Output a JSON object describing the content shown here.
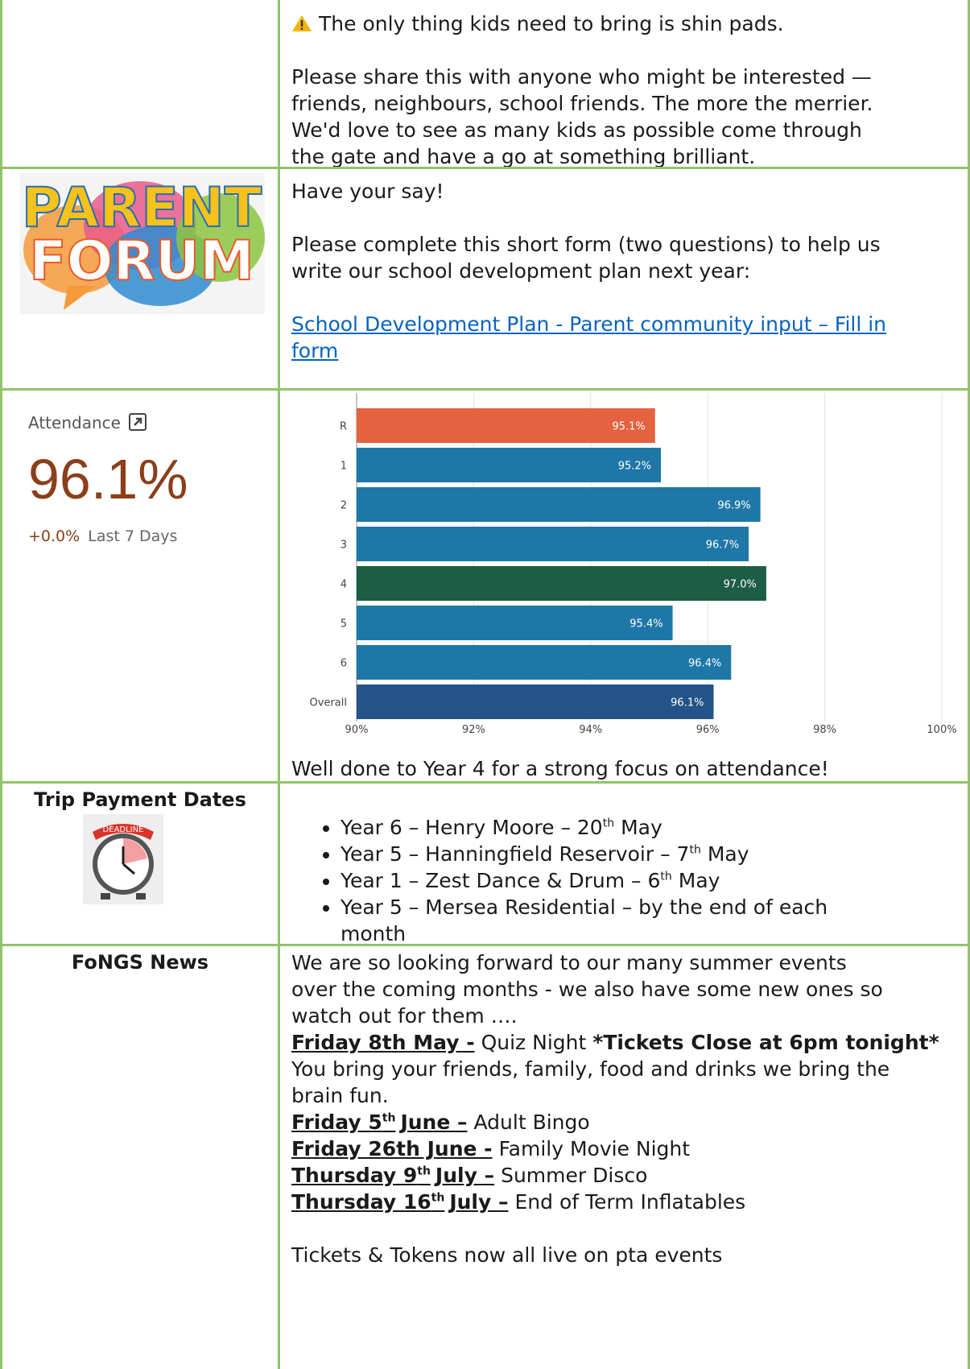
{
  "notice": {
    "warning": "The only thing kids need to bring is shin pads.",
    "paragraph": [
      "Please share this with anyone who might be interested —",
      "friends, neighbours, school friends. The more the merrier.",
      "We'd love to see as many kids as possible come through",
      "the gate and have a go at something brilliant."
    ]
  },
  "parent_forum": {
    "logo": [
      "PARENT",
      "FORUM"
    ],
    "heading": "Have your say!",
    "paragraph": [
      "Please complete this short form (two questions) to help us",
      "write our school development plan next year:"
    ],
    "link": [
      "School Development Plan - Parent community input – Fill in",
      "form"
    ]
  },
  "attendance": {
    "label": "Attendance",
    "value": "96.1%",
    "change": "+0.0%",
    "period": "Last 7 Days",
    "caption": "Well done to Year 4 for a strong focus on attendance!"
  },
  "chart_data": {
    "type": "bar",
    "orientation": "horizontal",
    "categories": [
      "R",
      "1",
      "2",
      "3",
      "4",
      "5",
      "6",
      "Overall"
    ],
    "values": [
      95.1,
      95.2,
      96.9,
      96.7,
      97.0,
      95.4,
      96.4,
      96.1
    ],
    "value_labels": [
      "95.1%",
      "95.2%",
      "96.9%",
      "96.7%",
      "97.0%",
      "95.4%",
      "96.4%",
      "96.1%"
    ],
    "colors": [
      "#e4623f",
      "#1f77a8",
      "#1f77a8",
      "#1f77a8",
      "#1d5c45",
      "#1f77a8",
      "#1f77a8",
      "#245487"
    ],
    "xlim": [
      90,
      100
    ],
    "xticks": [
      {
        "value": 90,
        "label": "90%"
      },
      {
        "value": 92,
        "label": "92%"
      },
      {
        "value": 94,
        "label": "94%"
      },
      {
        "value": 96,
        "label": "96%"
      },
      {
        "value": 98,
        "label": "98%"
      },
      {
        "value": 100,
        "label": "100%"
      }
    ],
    "grid": true
  },
  "trips": {
    "title": "Trip Payment Dates",
    "badge": "DEADLINE",
    "items": [
      {
        "text": "Year 6 – Henry Moore – 20",
        "sup": "th",
        "end": "May"
      },
      {
        "text": "Year 5 – Hanningfield Reservoir – 7",
        "sup": "th",
        "end": "May"
      },
      {
        "text": "Year 1 – Zest Dance & Drum – 6",
        "sup": "th",
        "end": "May"
      },
      {
        "lines": [
          "Year 5 – Mersea Residential – by the end of each",
          "month"
        ]
      }
    ]
  },
  "fongs": {
    "title": "FoNGS News",
    "intro": [
      "We are so looking forward to our many summer events",
      "over the coming months - we also have some new ones so",
      "watch out for them …."
    ],
    "events": [
      {
        "date": "Friday 8th May -",
        "event": "Quiz Night",
        "note": "*Tickets Close at 6pm tonight*",
        "detail": [
          "You bring your friends, family, food and drinks we bring the",
          "brain fun."
        ]
      },
      {
        "date": "Friday 5",
        "date_sup": "th",
        "date_end": "June –",
        "event": "Adult Bingo"
      },
      {
        "date": "Friday 26th June -",
        "event": "Family Movie Night"
      },
      {
        "date": "Thursday 9",
        "date_sup": "th",
        "date_end": "July –",
        "event": "Summer Disco"
      },
      {
        "date": "Thursday 16",
        "date_sup": "th",
        "date_end": "July –",
        "event": "End of Term Inflatables"
      }
    ],
    "closing": "Tickets & Tokens now all live on pta events"
  }
}
